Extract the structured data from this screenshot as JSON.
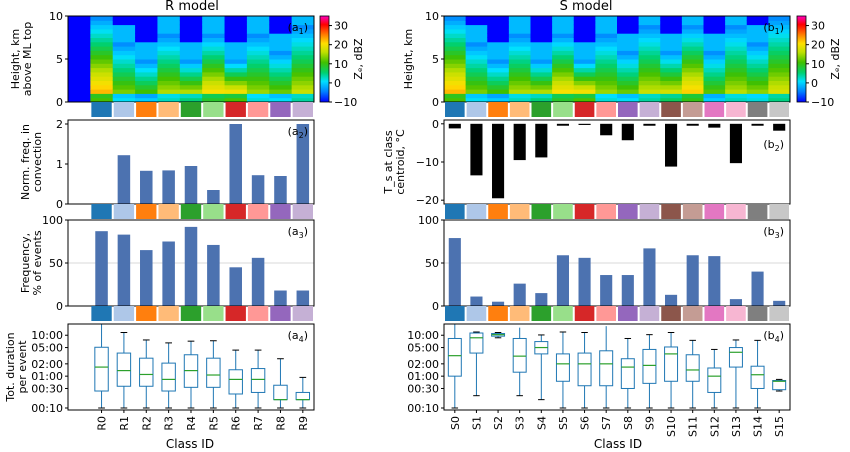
{
  "left_panel": {
    "title": "R model",
    "classes": [
      "R0",
      "R1",
      "R2",
      "R3",
      "R4",
      "R5",
      "R6",
      "R7",
      "R8",
      "R9"
    ],
    "xlabel": "Class ID"
  },
  "right_panel": {
    "title": "S model",
    "classes": [
      "S0",
      "S1",
      "S2",
      "S3",
      "S4",
      "S5",
      "S6",
      "S7",
      "S8",
      "S9",
      "S10",
      "S11",
      "S12",
      "S13",
      "S14",
      "S15"
    ],
    "xlabel": "Class ID"
  },
  "class_colors": [
    "#1f77b4",
    "#aec7e8",
    "#ff7f0e",
    "#ffbb78",
    "#2ca02c",
    "#98df8a",
    "#d62728",
    "#ff9896",
    "#9467bd",
    "#c5b0d5",
    "#8c564b",
    "#c49c94",
    "#e377c2",
    "#f7b6d2",
    "#7f7f7f",
    "#c7c7c7"
  ],
  "bar_color": "#4c72b0",
  "box_color": "#1f77b4",
  "median_color": "#2ca02c",
  "colorbar": {
    "label": "Z_e, dBZ",
    "ticks": [
      "30",
      "20",
      "10",
      "0",
      "−10"
    ],
    "range": [
      -10,
      35
    ]
  },
  "chart_data": [
    {
      "id": "a1",
      "type": "heatmap",
      "panel_label": "a",
      "panel_sub": "1",
      "ylabel": [
        "Height, km",
        "above ML top"
      ],
      "ylim": [
        0,
        10
      ],
      "yticks": [
        "0",
        "5",
        "10"
      ]
    },
    {
      "id": "a2",
      "type": "bar",
      "panel_label": "a",
      "panel_sub": "2",
      "ylabel": [
        "Norm. freq. in",
        "convection"
      ],
      "categories": [
        "R0",
        "R1",
        "R2",
        "R3",
        "R4",
        "R5",
        "R6",
        "R7",
        "R8",
        "R9"
      ],
      "values": [
        0.0,
        1.22,
        0.83,
        0.84,
        0.95,
        0.35,
        2.0,
        0.72,
        0.7,
        2.0
      ],
      "ylim": [
        0,
        2.1
      ],
      "yticks": [
        "0",
        "1",
        "2"
      ]
    },
    {
      "id": "a3",
      "type": "bar",
      "panel_label": "a",
      "panel_sub": "3",
      "ylabel": [
        "Frequency,",
        "% of events"
      ],
      "categories": [
        "R0",
        "R1",
        "R2",
        "R3",
        "R4",
        "R5",
        "R6",
        "R7",
        "R8",
        "R9"
      ],
      "values": [
        87,
        83,
        65,
        75,
        92,
        71,
        45,
        56,
        18,
        18
      ],
      "ylim": [
        0,
        100
      ],
      "yticks": [
        "0",
        "50",
        "100"
      ]
    },
    {
      "id": "a4",
      "type": "box",
      "panel_label": "a",
      "panel_sub": "4",
      "ylabel": [
        "Tot. duration",
        "per event"
      ],
      "yticks": [
        "00:10",
        "00:30",
        "01:00",
        "02:00",
        "05:00",
        "10:00"
      ],
      "categories": [
        "R0",
        "R1",
        "R2",
        "R3",
        "R4",
        "R5",
        "R6",
        "R7",
        "R8",
        "R9"
      ],
      "boxes_minutes": [
        {
          "wlo": 10,
          "q1": 26,
          "med": 100,
          "q3": 305,
          "whi": 1500
        },
        {
          "wlo": 10,
          "q1": 34,
          "med": 82,
          "q3": 220,
          "whi": 700
        },
        {
          "wlo": 10,
          "q1": 34,
          "med": 66,
          "q3": 165,
          "whi": 460
        },
        {
          "wlo": 10,
          "q1": 26,
          "med": 50,
          "q3": 125,
          "whi": 390
        },
        {
          "wlo": 10,
          "q1": 32,
          "med": 82,
          "q3": 200,
          "whi": 430
        },
        {
          "wlo": 10,
          "q1": 32,
          "med": 64,
          "q3": 165,
          "whi": 440
        },
        {
          "wlo": 10,
          "q1": 22,
          "med": 50,
          "q3": 86,
          "whi": 260
        },
        {
          "wlo": 10,
          "q1": 24,
          "med": 50,
          "q3": 92,
          "whi": 260
        },
        {
          "wlo": 10,
          "q1": 16,
          "med": 16,
          "q3": 36,
          "whi": 160
        },
        {
          "wlo": 10,
          "q1": 16,
          "med": 16,
          "q3": 24,
          "whi": 56
        }
      ]
    },
    {
      "id": "b1",
      "type": "heatmap",
      "panel_label": "b",
      "panel_sub": "1",
      "ylabel": [
        "Height, km"
      ],
      "ylim": [
        0,
        10
      ],
      "yticks": [
        "0",
        "5",
        "10"
      ]
    },
    {
      "id": "b2",
      "type": "bar",
      "panel_label": "b",
      "panel_sub": "2",
      "ylabel": [
        "T_s at class",
        "centroid, °C"
      ],
      "categories": [
        "S0",
        "S1",
        "S2",
        "S3",
        "S4",
        "S5",
        "S6",
        "S7",
        "S8",
        "S9",
        "S10",
        "S11",
        "S12",
        "S13",
        "S14",
        "S15"
      ],
      "values": [
        -1.2,
        -13.5,
        -19.5,
        -9.5,
        -8.8,
        -0.5,
        -0.3,
        -3.0,
        -4.3,
        -0.5,
        -11.2,
        -0.5,
        -1.0,
        -10.3,
        -0.5,
        -1.8
      ],
      "ylim": [
        -21,
        1
      ],
      "yticks": [
        "0",
        "−10",
        "−20"
      ]
    },
    {
      "id": "b3",
      "type": "bar",
      "panel_label": "b",
      "panel_sub": "3",
      "ylabel": [],
      "categories": [
        "S0",
        "S1",
        "S2",
        "S3",
        "S4",
        "S5",
        "S6",
        "S7",
        "S8",
        "S9",
        "S10",
        "S11",
        "S12",
        "S13",
        "S14",
        "S15"
      ],
      "values": [
        79,
        11,
        5,
        26,
        15,
        59,
        56,
        36,
        36,
        67,
        13,
        59,
        58,
        8,
        40,
        6
      ],
      "ylim": [
        0,
        100
      ],
      "yticks": [
        "0",
        "50",
        "100"
      ]
    },
    {
      "id": "b4",
      "type": "box",
      "panel_label": "b",
      "panel_sub": "4",
      "ylabel": [],
      "yticks": [
        "00:10",
        "00:30",
        "01:00",
        "02:00",
        "05:00",
        "10:00"
      ],
      "categories": [
        "S0",
        "S1",
        "S2",
        "S3",
        "S4",
        "S5",
        "S6",
        "S7",
        "S8",
        "S9",
        "S10",
        "S11",
        "S12",
        "S13",
        "S14",
        "S15"
      ],
      "boxes_minutes": [
        {
          "wlo": 10,
          "q1": 60,
          "med": 190,
          "q3": 500,
          "whi": 1500
        },
        {
          "wlo": 20,
          "q1": 220,
          "med": 520,
          "q3": 680,
          "whi": 720
        },
        {
          "wlo": 520,
          "q1": 570,
          "med": 620,
          "q3": 660,
          "whi": 700
        },
        {
          "wlo": 20,
          "q1": 75,
          "med": 185,
          "q3": 500,
          "whi": 920
        },
        {
          "wlo": 16,
          "q1": 210,
          "med": 300,
          "q3": 420,
          "whi": 610
        },
        {
          "wlo": 10,
          "q1": 45,
          "med": 120,
          "q3": 210,
          "whi": 720
        },
        {
          "wlo": 10,
          "q1": 35,
          "med": 120,
          "q3": 220,
          "whi": 700
        },
        {
          "wlo": 10,
          "q1": 35,
          "med": 120,
          "q3": 250,
          "whi": 1000
        },
        {
          "wlo": 10,
          "q1": 30,
          "med": 100,
          "q3": 160,
          "whi": 500
        },
        {
          "wlo": 10,
          "q1": 40,
          "med": 110,
          "q3": 270,
          "whi": 620
        },
        {
          "wlo": 10,
          "q1": 45,
          "med": 210,
          "q3": 310,
          "whi": 700
        },
        {
          "wlo": 10,
          "q1": 45,
          "med": 85,
          "q3": 200,
          "whi": 450
        },
        {
          "wlo": 10,
          "q1": 24,
          "med": 60,
          "q3": 95,
          "whi": 270
        },
        {
          "wlo": 10,
          "q1": 100,
          "med": 230,
          "q3": 300,
          "whi": 460
        },
        {
          "wlo": 10,
          "q1": 30,
          "med": 65,
          "q3": 105,
          "whi": 450
        },
        {
          "wlo": 26,
          "q1": 28,
          "med": 45,
          "q3": 47,
          "whi": 50
        }
      ]
    }
  ]
}
